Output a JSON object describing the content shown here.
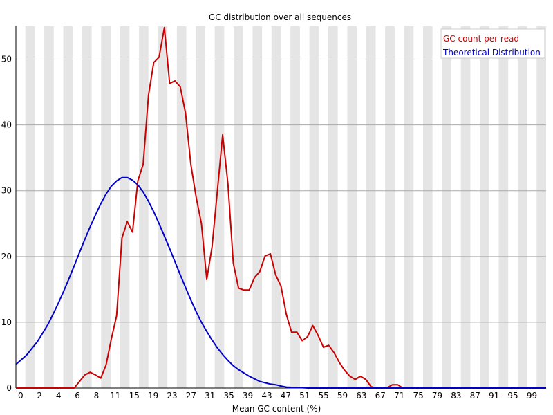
{
  "chart_data": {
    "type": "line",
    "title": "GC distribution over all sequences",
    "xlabel": "Mean GC content (%)",
    "ylabel": "",
    "xlim": [
      0,
      100
    ],
    "ylim": [
      0,
      55
    ],
    "x_tick_labels": [
      "0",
      "2",
      "4",
      "6",
      "8",
      "11",
      "15",
      "19",
      "23",
      "27",
      "31",
      "35",
      "39",
      "43",
      "47",
      "51",
      "55",
      "59",
      "63",
      "67",
      "71",
      "75",
      "79",
      "83",
      "87",
      "91",
      "95",
      "99"
    ],
    "y_ticks": [
      0,
      10,
      20,
      30,
      40,
      50
    ],
    "grid": "horizontal lines with alternating grey/white vertical bands",
    "legend_position": "top-right",
    "series": [
      {
        "name": "GC count per read",
        "color": "#cc0000",
        "x": [
          0,
          1,
          2,
          3,
          4,
          5,
          6,
          7,
          8,
          9,
          10,
          11,
          12,
          13,
          14,
          15,
          16,
          17,
          18,
          19,
          20,
          21,
          22,
          23,
          24,
          25,
          26,
          27,
          28,
          29,
          30,
          31,
          32,
          33,
          34,
          35,
          36,
          37,
          38,
          39,
          40,
          41,
          42,
          43,
          44,
          45,
          46,
          47,
          48,
          49,
          50,
          51,
          52,
          53,
          54,
          55,
          56,
          57,
          58,
          59,
          60,
          61,
          62,
          63,
          64,
          65,
          66,
          67,
          68,
          69,
          70,
          71,
          72,
          73,
          74,
          75,
          76,
          77,
          78,
          79,
          80,
          81,
          82,
          83,
          84,
          85,
          86,
          87,
          88,
          89,
          90,
          91,
          92,
          93,
          94,
          95,
          96,
          97,
          98,
          99,
          100
        ],
        "values": [
          0,
          0,
          0,
          0,
          0,
          0,
          0,
          0,
          0,
          0,
          0,
          0,
          1,
          2,
          2.4,
          2,
          1.5,
          3.5,
          7.5,
          11,
          22.8,
          25.3,
          23.7,
          31.5,
          34,
          44.5,
          49.5,
          50.3,
          54.8,
          46.3,
          46.7,
          45.8,
          41.8,
          34,
          29,
          25,
          16.5,
          21.5,
          30,
          38.5,
          31,
          19,
          15.2,
          14.9,
          14.9,
          16.8,
          17.7,
          20.1,
          20.4,
          17.2,
          15.5,
          11.2,
          8.5,
          8.5,
          7.2,
          7.8,
          9.5,
          8,
          6.2,
          6.5,
          5.4,
          3.9,
          2.7,
          1.8,
          1.3,
          1.8,
          1.3,
          0.2,
          0,
          0,
          0,
          0.5,
          0.5,
          0,
          0,
          0,
          0,
          0,
          0,
          0,
          0,
          0,
          0,
          0,
          0,
          0,
          0,
          0,
          0,
          0,
          0,
          0,
          0,
          0,
          0,
          0,
          0,
          0,
          0,
          0,
          0
        ]
      },
      {
        "name": "Theoretical Distribution",
        "color": "#0000cc",
        "x": [
          0,
          1,
          2,
          3,
          4,
          5,
          6,
          7,
          8,
          9,
          10,
          11,
          12,
          13,
          14,
          15,
          16,
          17,
          18,
          19,
          20,
          21,
          22,
          23,
          24,
          25,
          26,
          27,
          28,
          29,
          30,
          31,
          32,
          33,
          34,
          35,
          36,
          37,
          38,
          39,
          40,
          41,
          42,
          43,
          44,
          45,
          46,
          47,
          48,
          49,
          50,
          51,
          52,
          53,
          54,
          55,
          56,
          57,
          58,
          59,
          60,
          61,
          62,
          63,
          64,
          65,
          66,
          67,
          68,
          69,
          70,
          71,
          72,
          73,
          74,
          75,
          76,
          77,
          78,
          79,
          80,
          81,
          82,
          83,
          84,
          85,
          86,
          87,
          88,
          89,
          90,
          91,
          92,
          93,
          94,
          95,
          96,
          97,
          98,
          99,
          100
        ],
        "values": [
          3.6,
          4.3,
          5,
          6,
          7,
          8.3,
          9.6,
          11.2,
          12.9,
          14.7,
          16.6,
          18.6,
          20.6,
          22.6,
          24.5,
          26.3,
          28,
          29.5,
          30.7,
          31.5,
          32,
          32,
          31.6,
          30.9,
          29.8,
          28.4,
          26.8,
          25,
          23.1,
          21.2,
          19.2,
          17.2,
          15.3,
          13.4,
          11.6,
          10,
          8.6,
          7.3,
          6.1,
          5.1,
          4.2,
          3.4,
          2.8,
          2.3,
          1.8,
          1.4,
          1,
          0.8,
          0.6,
          0.5,
          0.3,
          0.15,
          0.1,
          0.1,
          0.05,
          0,
          0,
          0,
          0,
          0,
          0,
          0,
          0,
          0,
          0,
          0,
          0,
          0,
          0,
          0,
          0,
          0,
          0,
          0,
          0,
          0,
          0,
          0,
          0,
          0,
          0,
          0,
          0,
          0,
          0,
          0,
          0,
          0,
          0,
          0,
          0,
          0,
          0,
          0,
          0,
          0,
          0,
          0,
          0,
          0,
          0
        ]
      }
    ]
  }
}
